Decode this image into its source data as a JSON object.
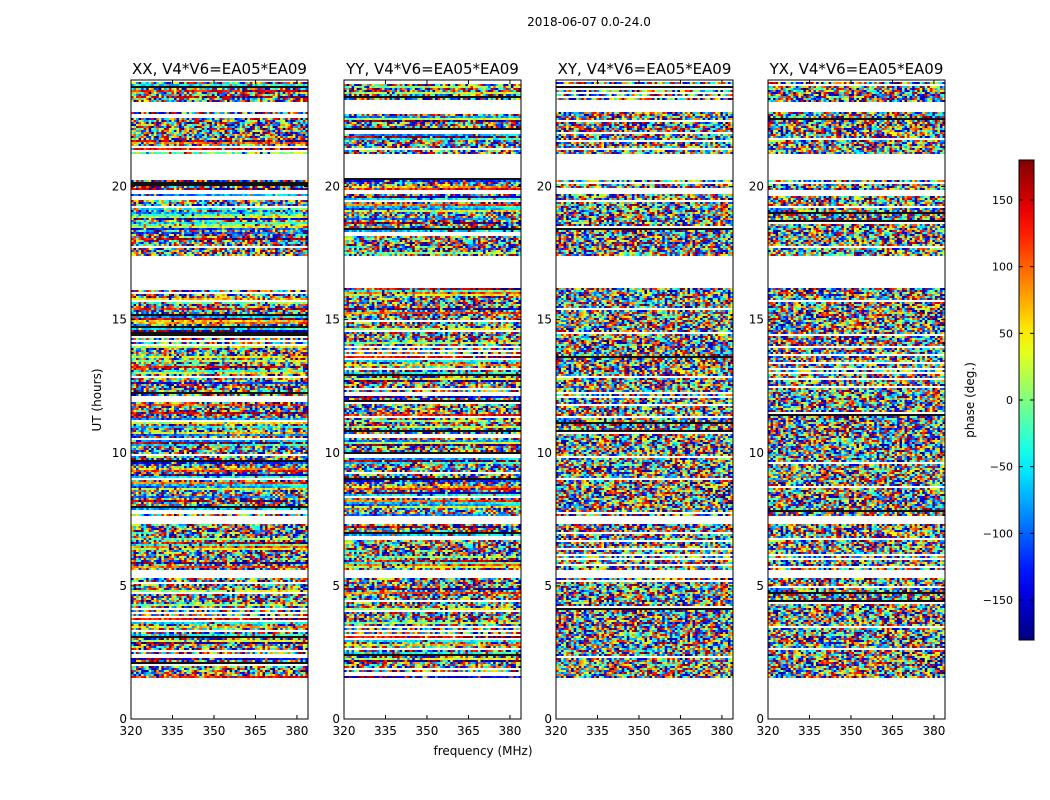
{
  "figure_title": "2018-06-07 0.0-24.0",
  "chart_data": {
    "type": "heatmap",
    "title": "2018-06-07 0.0-24.0",
    "xlabel": "frequency (MHz)",
    "ylabel": "UT (hours)",
    "xlim": [
      320,
      384
    ],
    "ylim": [
      0,
      24
    ],
    "x_ticks": [
      320,
      335,
      350,
      365,
      380
    ],
    "y_ticks": [
      0,
      5,
      10,
      15,
      20
    ],
    "panels": [
      {
        "title": "XX, V4*V6=EA05*EA09",
        "pol": "XX",
        "coherent": true
      },
      {
        "title": "YY, V4*V6=EA05*EA09",
        "pol": "YY",
        "coherent": true
      },
      {
        "title": "XY, V4*V6=EA05*EA09",
        "pol": "XY",
        "coherent": false
      },
      {
        "title": "YX, V4*V6=EA05*EA09",
        "pol": "YX",
        "coherent": false
      }
    ],
    "data_hours_with_signal": [
      1.55,
      23.9
    ],
    "blank_gaps_hours": [
      [
        0,
        1.55
      ],
      [
        5.3,
        5.6
      ],
      [
        7.3,
        7.6
      ],
      [
        16.2,
        17.4
      ],
      [
        19.7,
        19.9
      ],
      [
        20.3,
        21.2
      ],
      [
        22.8,
        23.2
      ]
    ],
    "colorbar": {
      "label": "phase (deg.)",
      "range": [
        -180,
        180
      ],
      "ticks": [
        -150,
        -100,
        -50,
        0,
        50,
        100,
        150
      ],
      "colormap": "jet"
    }
  }
}
